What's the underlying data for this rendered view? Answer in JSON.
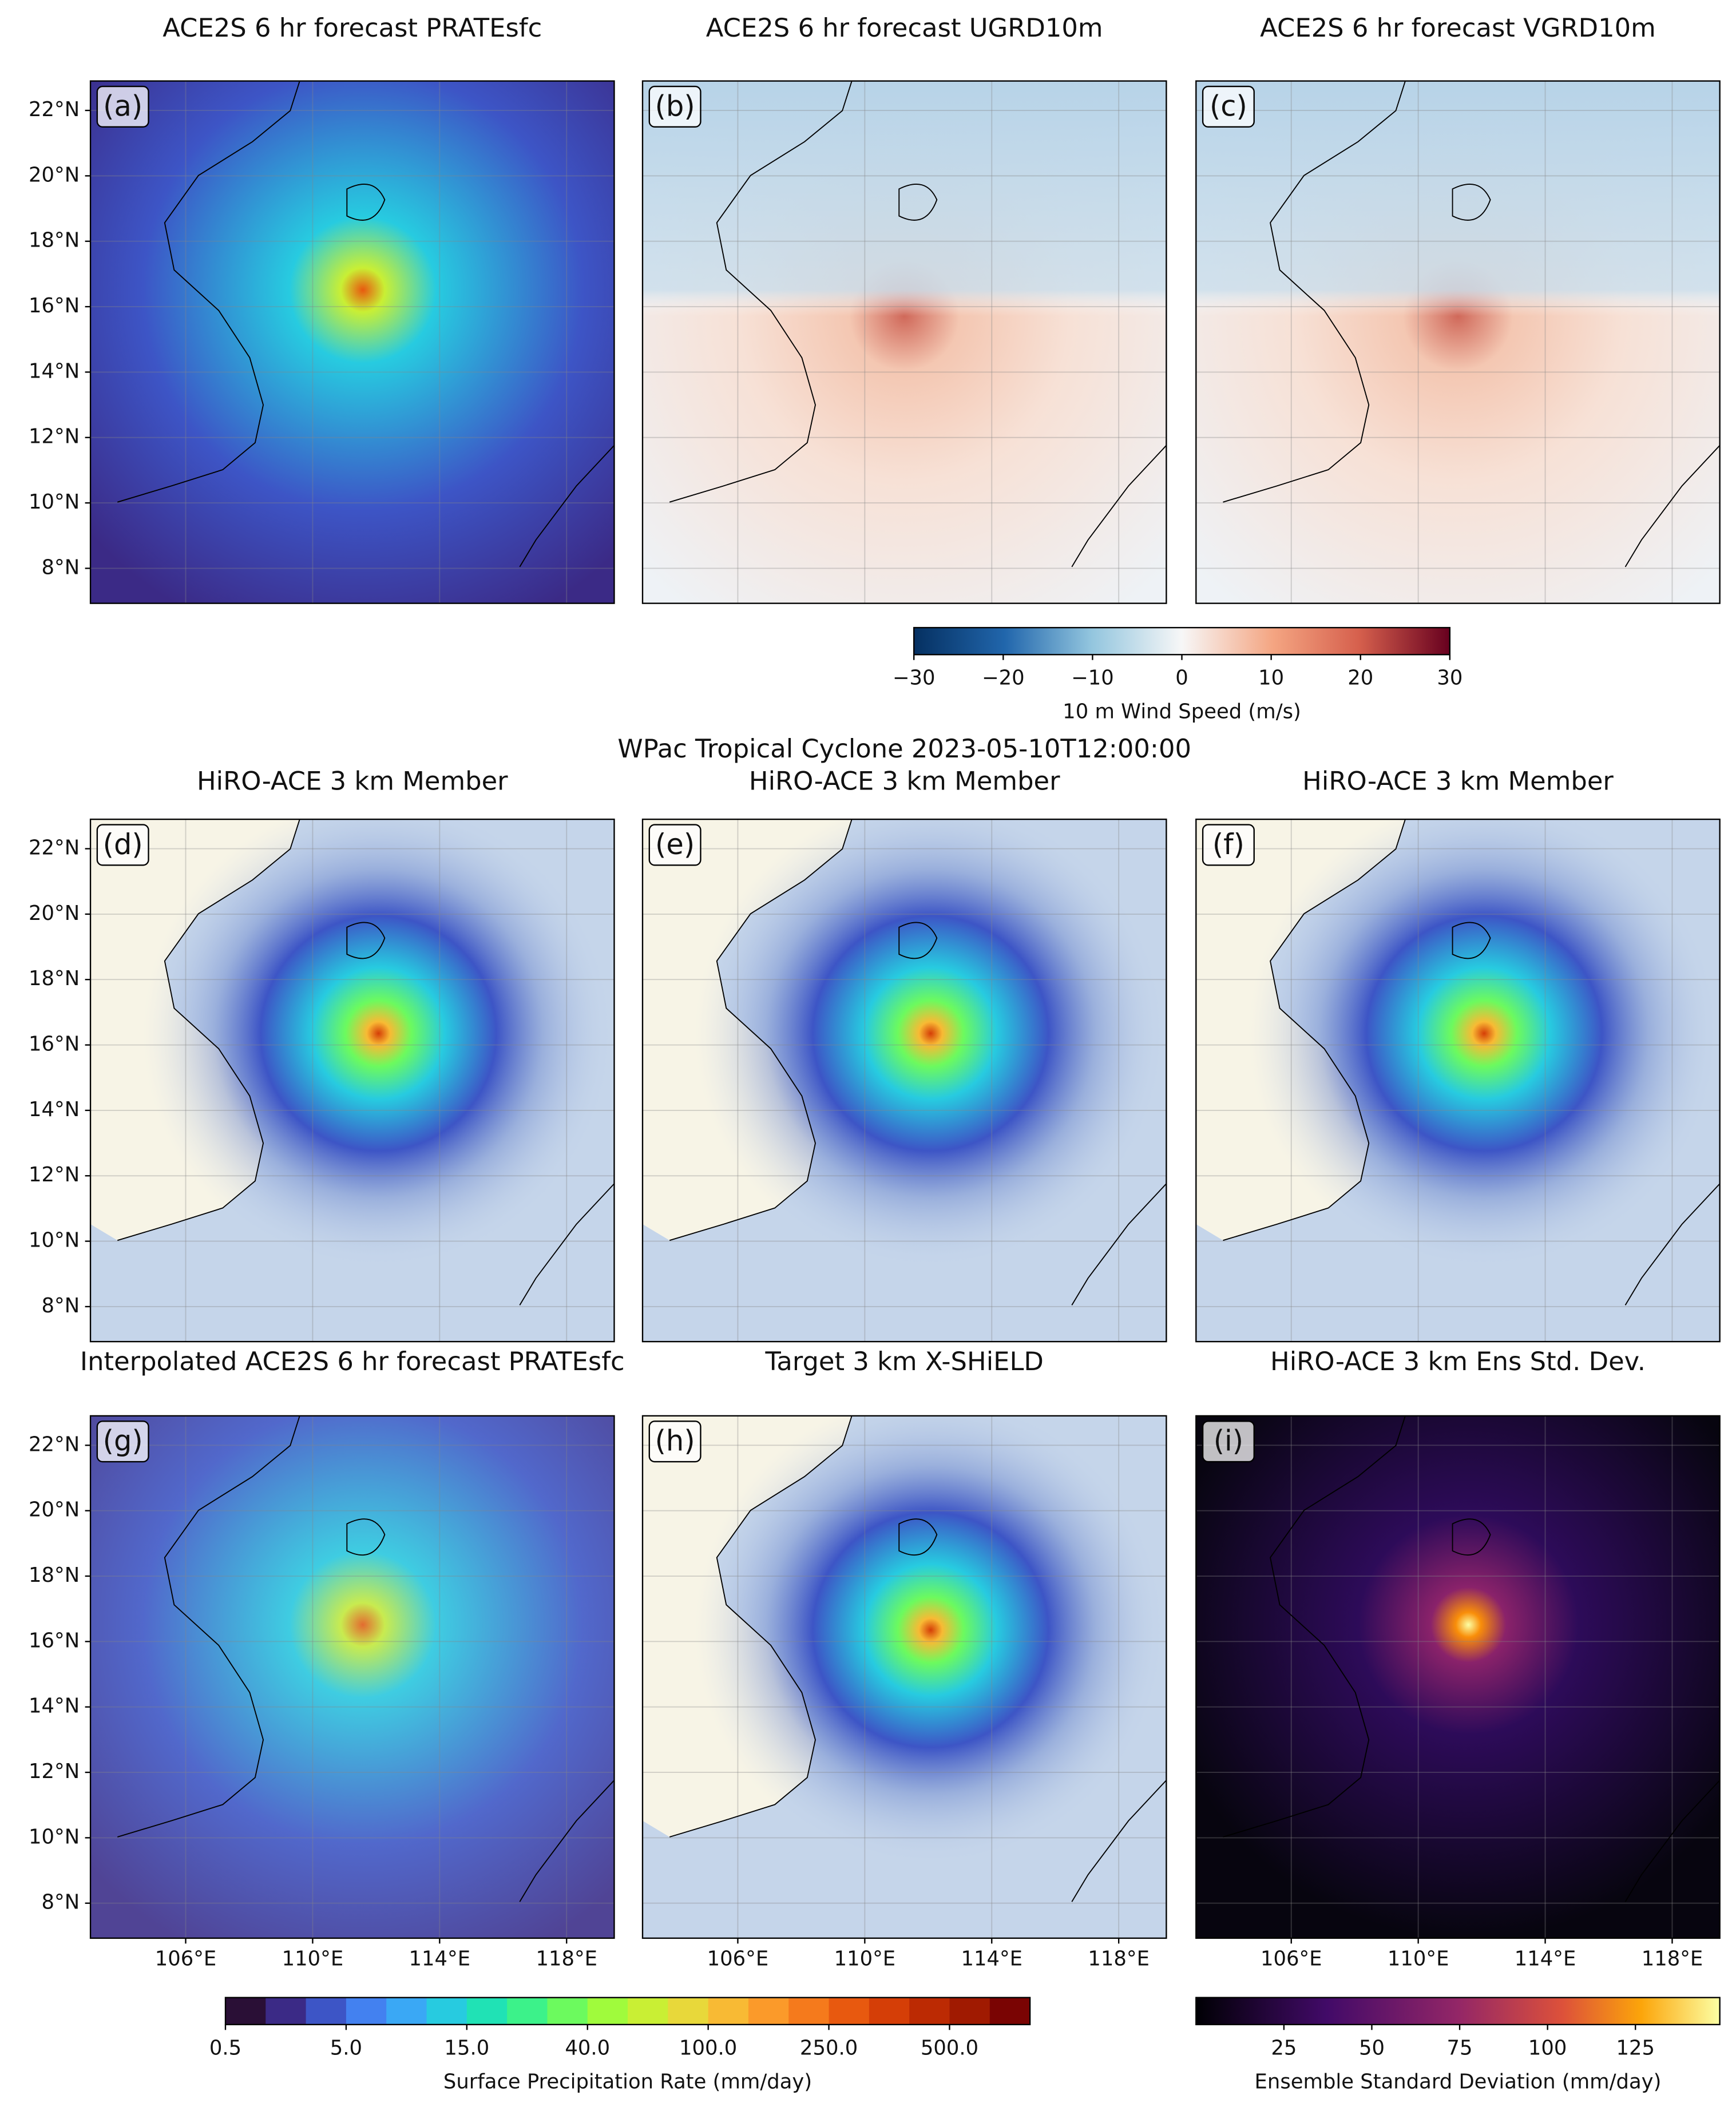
{
  "chart_data": {
    "type": "map-panels",
    "title": "WPac Tropical Cyclone 2023-05-10T12:00:00",
    "xlim": [
      103,
      119.5
    ],
    "ylim": [
      6.93,
      22.9
    ],
    "xticks": [
      {
        "value": 106,
        "label": "106°E"
      },
      {
        "value": 110,
        "label": "110°E"
      },
      {
        "value": 114,
        "label": "114°E"
      },
      {
        "value": 118,
        "label": "118°E"
      }
    ],
    "yticks": [
      {
        "value": 22,
        "label": "22°N"
      },
      {
        "value": 20,
        "label": "20°N"
      },
      {
        "value": 18,
        "label": "18°N"
      },
      {
        "value": 16,
        "label": "16°N"
      },
      {
        "value": 14,
        "label": "14°N"
      },
      {
        "value": 12,
        "label": "12°N"
      },
      {
        "value": 10,
        "label": "10°N"
      },
      {
        "value": 8,
        "label": "8°N"
      }
    ],
    "grid": true,
    "panels": [
      {
        "label": "(a)",
        "title": "ACE2S 6 hr forecast PRATEsfc"
      },
      {
        "label": "(b)",
        "title": "ACE2S 6 hr forecast UGRD10m"
      },
      {
        "label": "(c)",
        "title": "ACE2S 6 hr forecast VGRD10m"
      },
      {
        "label": "(d)",
        "title": "HiRO-ACE 3 km Member"
      },
      {
        "label": "(e)",
        "title": "HiRO-ACE 3 km Member"
      },
      {
        "label": "(f)",
        "title": "HiRO-ACE 3 km Member"
      },
      {
        "label": "(g)",
        "title": "Interpolated ACE2S 6 hr forecast PRATEsfc"
      },
      {
        "label": "(h)",
        "title": "Target 3 km X-SHiELD"
      },
      {
        "label": "(i)",
        "title": "HiRO-ACE 3 km Ens Std. Dev."
      }
    ],
    "colorbars": [
      {
        "label": "10 m Wind Speed (m/s)",
        "lim": [
          -30,
          30
        ],
        "ticks": [
          {
            "value": -30,
            "label": "−30"
          },
          {
            "value": -20,
            "label": "−20"
          },
          {
            "value": -10,
            "label": "−10"
          },
          0,
          10,
          20,
          30
        ]
      },
      {
        "label": "Surface Precipitation Rate (mm/day)",
        "colors": [
          "#2a0f36",
          "#3b2a86",
          "#3d55c6",
          "#4381f0",
          "#3aa8f5",
          "#27cbe0",
          "#20e2b5",
          "#3cf28a",
          "#6cfa5e",
          "#a0fb3c",
          "#c9ef34",
          "#e8d83a",
          "#f8ba34",
          "#fb9a2a",
          "#f57a1c",
          "#e8590f",
          "#d53e07",
          "#bc2a03",
          "#a01a01",
          "#7a0403"
        ],
        "ticks": [
          {
            "value": 0.5,
            "label": "0.5"
          },
          {
            "value": 5,
            "label": "5.0"
          },
          {
            "value": 15,
            "label": "15.0"
          },
          {
            "value": 40,
            "label": "40.0"
          },
          {
            "value": 100,
            "label": "100.0"
          },
          {
            "value": 250,
            "label": "250.0"
          },
          {
            "value": 500,
            "label": "500.0"
          }
        ]
      },
      {
        "label": "Ensemble Standard Deviation (mm/day)",
        "lim": [
          0,
          149
        ],
        "ticks": [
          25,
          50,
          75,
          100,
          125
        ]
      }
    ]
  }
}
